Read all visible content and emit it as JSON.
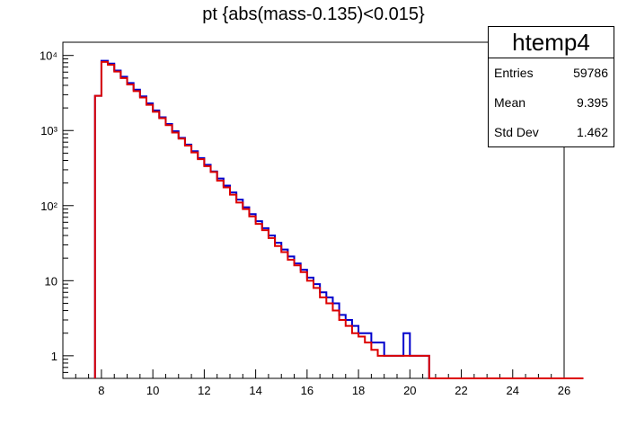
{
  "chart_data": {
    "type": "histogram",
    "title": "pt {abs(mass-0.135)<0.015}",
    "xlim": [
      6.5,
      26
    ],
    "ylog": true,
    "ylim": [
      0.5,
      15000
    ],
    "bin_width": 0.25,
    "x_start": 7.75,
    "x_ticks": [
      8,
      10,
      12,
      14,
      16,
      18,
      20,
      22,
      24,
      26
    ],
    "y_ticks": [
      {
        "value": 1,
        "label": "1"
      },
      {
        "value": 10,
        "label": "10"
      },
      {
        "value": 100,
        "label": "10²"
      },
      {
        "value": 1000,
        "label": "10³"
      },
      {
        "value": 10000,
        "label": "10⁴"
      }
    ],
    "series": [
      {
        "color": "#0000cc",
        "values": [
          2900,
          8500,
          7800,
          6300,
          5200,
          4300,
          3500,
          2850,
          2300,
          1850,
          1500,
          1220,
          980,
          800,
          650,
          530,
          430,
          350,
          285,
          230,
          185,
          150,
          120,
          95,
          77,
          62,
          50,
          40,
          32,
          26,
          21,
          17,
          14,
          11,
          9,
          7,
          6,
          5,
          3.5,
          3,
          2.5,
          2,
          2,
          1.5,
          1.5,
          1,
          1,
          1,
          2,
          1,
          1,
          1,
          0,
          0,
          0,
          0,
          0,
          0,
          0,
          0,
          0,
          0,
          0,
          0,
          0,
          0,
          0,
          0,
          0,
          0,
          0,
          0,
          0,
          0,
          0,
          0
        ]
      },
      {
        "color": "#dd0000",
        "values": [
          2900,
          8200,
          7500,
          6100,
          5000,
          4100,
          3350,
          2750,
          2200,
          1780,
          1460,
          1180,
          940,
          780,
          630,
          510,
          415,
          335,
          280,
          215,
          175,
          140,
          110,
          90,
          72,
          57,
          47,
          37,
          29,
          24,
          19,
          16,
          13,
          10,
          8,
          6,
          5,
          4,
          3,
          2.5,
          2,
          1.8,
          1.5,
          1.2,
          1,
          1,
          1,
          1,
          1,
          1,
          1,
          1,
          0,
          0,
          0,
          0,
          0,
          0,
          0,
          0,
          0,
          0,
          0,
          0,
          0,
          0,
          0,
          0,
          0,
          0,
          0,
          0,
          0,
          0,
          0,
          0
        ]
      }
    ]
  },
  "stats": {
    "name": "htemp4",
    "rows": [
      {
        "label": "Entries",
        "value": "59786"
      },
      {
        "label": "Mean",
        "value": "9.395"
      },
      {
        "label": "Std Dev",
        "value": "1.462"
      }
    ]
  }
}
